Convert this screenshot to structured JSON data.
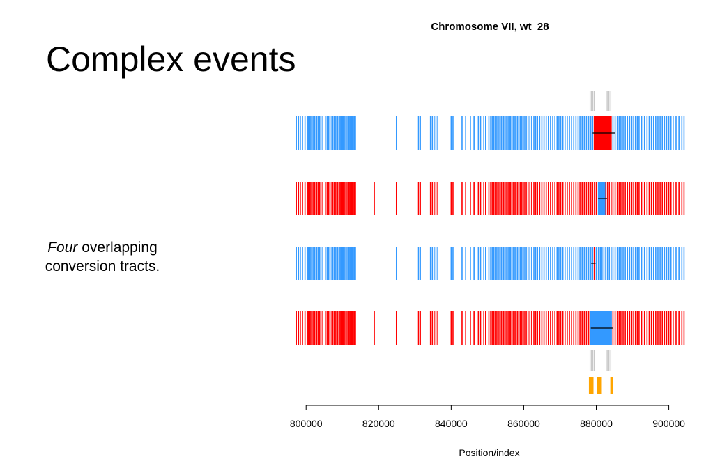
{
  "slide": {
    "title": "Complex events",
    "caption_emph": "Four",
    "caption_rest": " overlapping conversion tracts."
  },
  "colors": {
    "parent_a": "#3399ff",
    "parent_b": "#ff0000",
    "marker_gray": "#c8c8c8",
    "event_orange": "#ffa500",
    "axis": "#000000"
  },
  "chart_data": {
    "type": "track",
    "title": "Chromosome VII, wt_28",
    "xlabel": "Position/index",
    "xlim": [
      796500,
      904500
    ],
    "ticks": [
      800000,
      820000,
      840000,
      860000,
      880000,
      900000
    ],
    "base_markers": [
      797300,
      797900,
      798400,
      799000,
      799700,
      800300,
      800600,
      801000,
      801300,
      801900,
      802400,
      802900,
      803300,
      803700,
      804100,
      804600,
      805300,
      805800,
      806200,
      806600,
      807100,
      807400,
      807800,
      808200,
      808700,
      809100,
      809400,
      809700,
      810000,
      810300,
      810700,
      811100,
      811500,
      811800,
      812100,
      812400,
      812700,
      813000,
      813300,
      813600,
      824900,
      831000,
      831500,
      834300,
      834800,
      835300,
      835800,
      836300,
      840000,
      840500,
      843000,
      844000,
      845300,
      846300,
      847500,
      848100,
      849000,
      849500,
      850400,
      850900,
      851300,
      851800,
      852200,
      852600,
      853000,
      853400,
      853800,
      854200,
      854500,
      854900,
      855300,
      855700,
      856100,
      856400,
      856800,
      857200,
      857600,
      857900,
      858300,
      858700,
      859100,
      859500,
      859900,
      860300,
      860700,
      861200,
      861700,
      862200,
      862800,
      863300,
      863800,
      864400,
      865000,
      865600,
      866200,
      866800,
      867400,
      868000,
      868600,
      869200,
      869700,
      870200,
      870800,
      871400,
      872000,
      872600,
      873200,
      873800,
      874400,
      875000,
      875500,
      876100,
      876700,
      877300,
      877900,
      878500,
      879000,
      879500,
      880000,
      880600,
      881100,
      881600,
      882100,
      882600,
      883100,
      883600,
      884100,
      884600,
      885200,
      885800,
      886300,
      886800,
      887400,
      888000,
      888600,
      889200,
      889800,
      890300,
      890800,
      891300,
      891800,
      892500,
      893300,
      894000,
      894600,
      895200,
      895800,
      896400,
      897000,
      897600,
      898200,
      898800,
      899400,
      900000,
      900600,
      901200,
      902000,
      902800,
      903600,
      904200
    ],
    "tracks": [
      {
        "default_color": "parent_a",
        "extra_markers": [],
        "segment": {
          "start": 879300,
          "end": 884200,
          "color": "parent_b"
        },
        "tract_line": [
          879000,
          885200
        ]
      },
      {
        "default_color": "parent_b",
        "extra_markers": [
          818800
        ],
        "segment": {
          "start": 880500,
          "end": 882500,
          "color": "parent_a"
        },
        "tract_line": [
          880500,
          883000
        ]
      },
      {
        "default_color": "parent_a",
        "extra_markers": [],
        "segment": {
          "start": 879300,
          "end": 879700,
          "color": "parent_b"
        },
        "tract_line": [
          878600,
          879800
        ]
      },
      {
        "default_color": "parent_b",
        "extra_markers": [
          818800
        ],
        "segment": {
          "start": 878500,
          "end": 884300,
          "color": "parent_a"
        },
        "tract_line": [
          878500,
          884500
        ]
      }
    ],
    "gray_markers_top": [
      878300,
      878700,
      879000,
      879400,
      883000,
      883500,
      884000
    ],
    "gray_markers_bottom": [
      878300,
      878700,
      879000,
      879400,
      883000,
      883500,
      884000
    ],
    "event_markers": [
      878200,
      878400,
      878600,
      879000,
      880400,
      880700,
      881000,
      881300,
      884100,
      884400
    ]
  }
}
